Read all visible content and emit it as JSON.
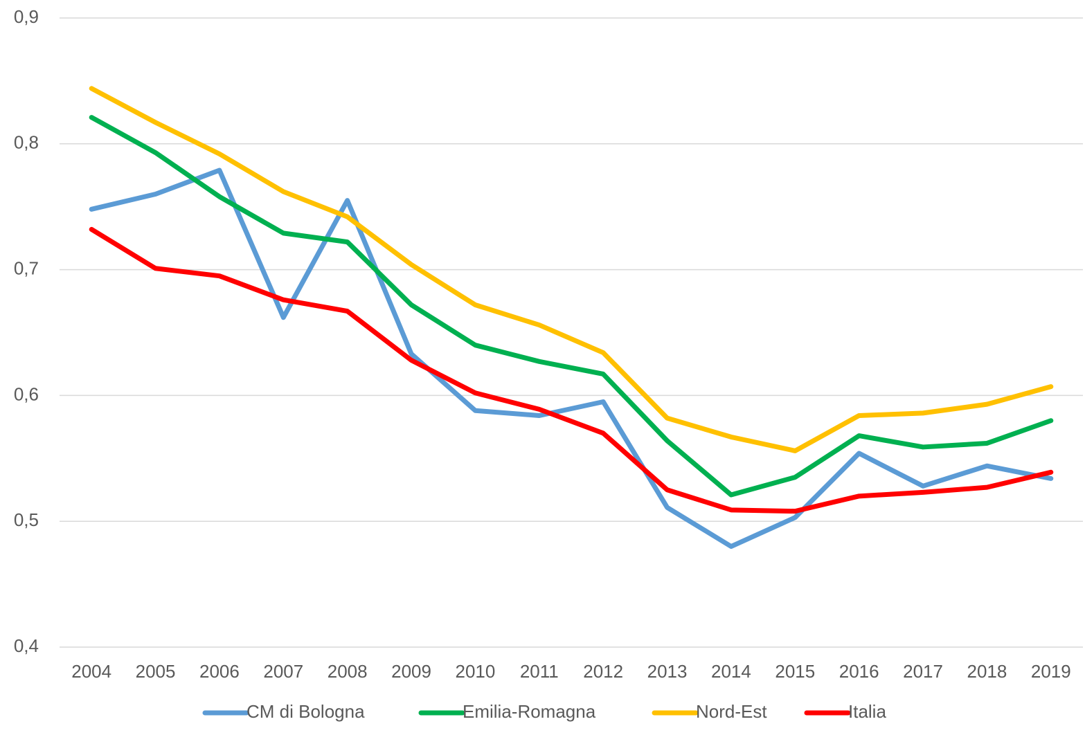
{
  "chart_data": {
    "type": "line",
    "categories": [
      "2004",
      "2005",
      "2006",
      "2007",
      "2008",
      "2009",
      "2010",
      "2011",
      "2012",
      "2013",
      "2014",
      "2015",
      "2016",
      "2017",
      "2018",
      "2019"
    ],
    "series": [
      {
        "name": "CM di Bologna",
        "color": "#5b9bd5",
        "values": [
          0.748,
          0.76,
          0.779,
          0.662,
          0.755,
          0.633,
          0.588,
          0.584,
          0.595,
          0.511,
          0.48,
          0.503,
          0.554,
          0.528,
          0.544,
          0.534
        ]
      },
      {
        "name": "Emilia-Romagna",
        "color": "#00b050",
        "values": [
          0.821,
          0.793,
          0.758,
          0.729,
          0.722,
          0.672,
          0.64,
          0.627,
          0.617,
          0.564,
          0.521,
          0.535,
          0.568,
          0.559,
          0.562,
          0.58
        ]
      },
      {
        "name": "Nord-Est",
        "color": "#ffc000",
        "values": [
          0.844,
          0.817,
          0.792,
          0.762,
          0.742,
          0.704,
          0.672,
          0.656,
          0.634,
          0.582,
          0.567,
          0.556,
          0.584,
          0.586,
          0.593,
          0.607
        ]
      },
      {
        "name": "Italia",
        "color": "#ff0000",
        "values": [
          0.732,
          0.701,
          0.695,
          0.676,
          0.667,
          0.628,
          0.602,
          0.589,
          0.57,
          0.525,
          0.509,
          0.508,
          0.52,
          0.523,
          0.527,
          0.539
        ]
      }
    ],
    "ylim": [
      0.4,
      0.9
    ],
    "yticks": [
      {
        "value": 0.4,
        "label": "0,4"
      },
      {
        "value": 0.5,
        "label": "0,5"
      },
      {
        "value": 0.6,
        "label": "0,6"
      },
      {
        "value": 0.7,
        "label": "0,7"
      },
      {
        "value": 0.8,
        "label": "0,8"
      },
      {
        "value": 0.9,
        "label": "0,9"
      }
    ],
    "grid": true,
    "legend": "bottom"
  }
}
